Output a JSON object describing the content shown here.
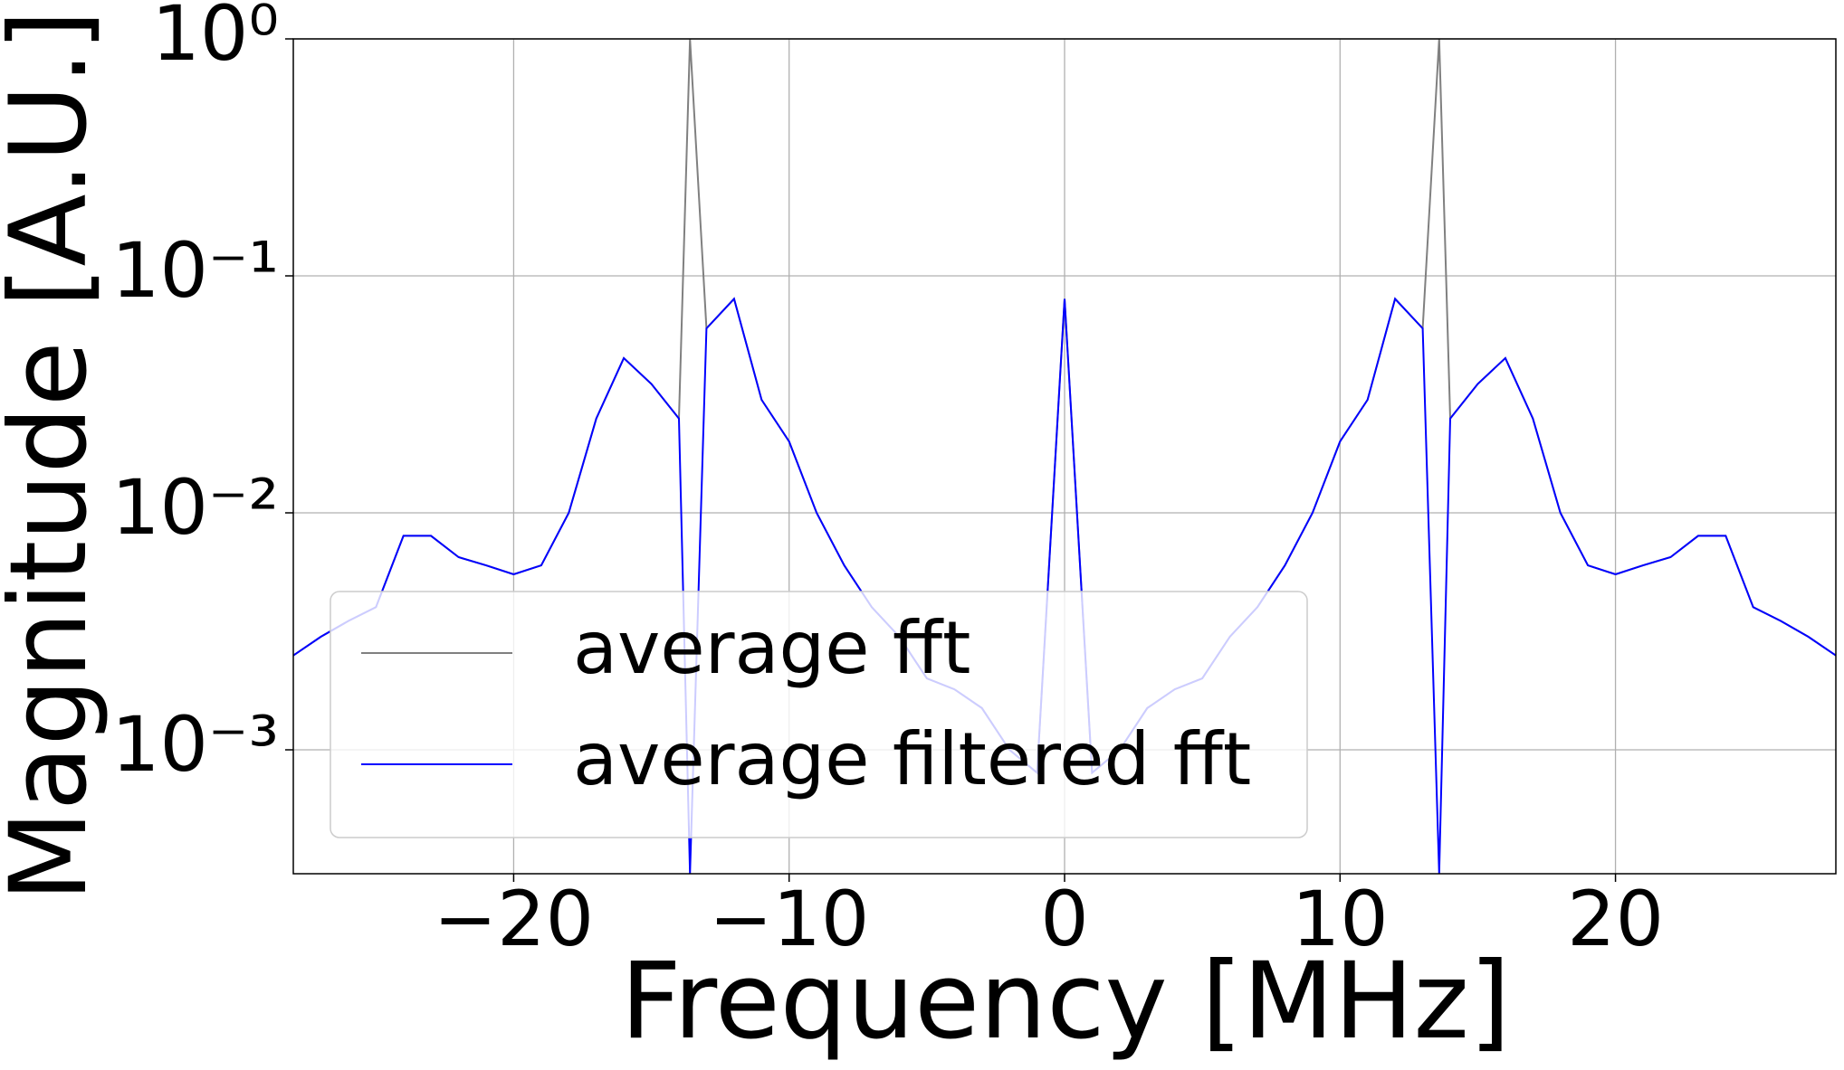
{
  "chart_data": {
    "type": "line",
    "xlabel": "Frequency [MHz]",
    "ylabel": "Magnitude [A.U.]",
    "x": [
      -28,
      -27,
      -26,
      -25,
      -24,
      -23,
      -22,
      -21,
      -20,
      -19,
      -18,
      -17,
      -16,
      -15,
      -14,
      -13.6,
      -13,
      -12,
      -11,
      -10,
      -9,
      -8,
      -7,
      -6,
      -5,
      -4,
      -3,
      -2,
      -1,
      0,
      1,
      2,
      3,
      4,
      5,
      6,
      7,
      8,
      9,
      10,
      11,
      12,
      13,
      13.6,
      14,
      15,
      16,
      17,
      18,
      19,
      20,
      21,
      22,
      23,
      24,
      25,
      26,
      27,
      28
    ],
    "series": [
      {
        "name": "average fft",
        "color": "#808080",
        "values": [
          0.0025,
          0.003,
          0.0035,
          0.004,
          0.008,
          0.008,
          0.0065,
          0.006,
          0.0055,
          0.006,
          0.01,
          0.025,
          0.045,
          0.035,
          0.025,
          1,
          0.06,
          0.08,
          0.03,
          0.02,
          0.01,
          0.006,
          0.004,
          0.003,
          0.002,
          0.0018,
          0.0015,
          0.001,
          0.0008,
          0.08,
          0.0008,
          0.001,
          0.0015,
          0.0018,
          0.002,
          0.003,
          0.004,
          0.006,
          0.01,
          0.02,
          0.03,
          0.08,
          0.06,
          1,
          0.025,
          0.035,
          0.045,
          0.025,
          0.01,
          0.006,
          0.0055,
          0.006,
          0.0065,
          0.008,
          0.008,
          0.004,
          0.0035,
          0.003,
          0.0025
        ]
      },
      {
        "name": "average filtered fft",
        "color": "#0000ff",
        "values": [
          0.0025,
          0.003,
          0.0035,
          0.004,
          0.008,
          0.008,
          0.0065,
          0.006,
          0.0055,
          0.006,
          0.01,
          0.025,
          0.045,
          0.035,
          0.025,
          0.0003,
          0.06,
          0.08,
          0.03,
          0.02,
          0.01,
          0.006,
          0.004,
          0.003,
          0.002,
          0.0018,
          0.0015,
          0.001,
          0.0008,
          0.08,
          0.0008,
          0.001,
          0.0015,
          0.0018,
          0.002,
          0.003,
          0.004,
          0.006,
          0.01,
          0.02,
          0.03,
          0.08,
          0.06,
          0.0003,
          0.025,
          0.035,
          0.045,
          0.025,
          0.01,
          0.006,
          0.0055,
          0.006,
          0.0065,
          0.008,
          0.008,
          0.004,
          0.0035,
          0.003,
          0.0025
        ]
      }
    ],
    "xlim": [
      -28,
      28
    ],
    "xticks": [
      -20,
      -10,
      0,
      10,
      20
    ],
    "ylim": [
      0.0003,
      1
    ],
    "yscale": "log",
    "yticks": [
      {
        "value": 0.001,
        "label": "10⁻³"
      },
      {
        "value": 0.01,
        "label": "10⁻²"
      },
      {
        "value": 0.1,
        "label": "10⁻¹"
      },
      {
        "value": 1,
        "label": "10⁰"
      }
    ],
    "grid": true,
    "legend": "lower left"
  }
}
